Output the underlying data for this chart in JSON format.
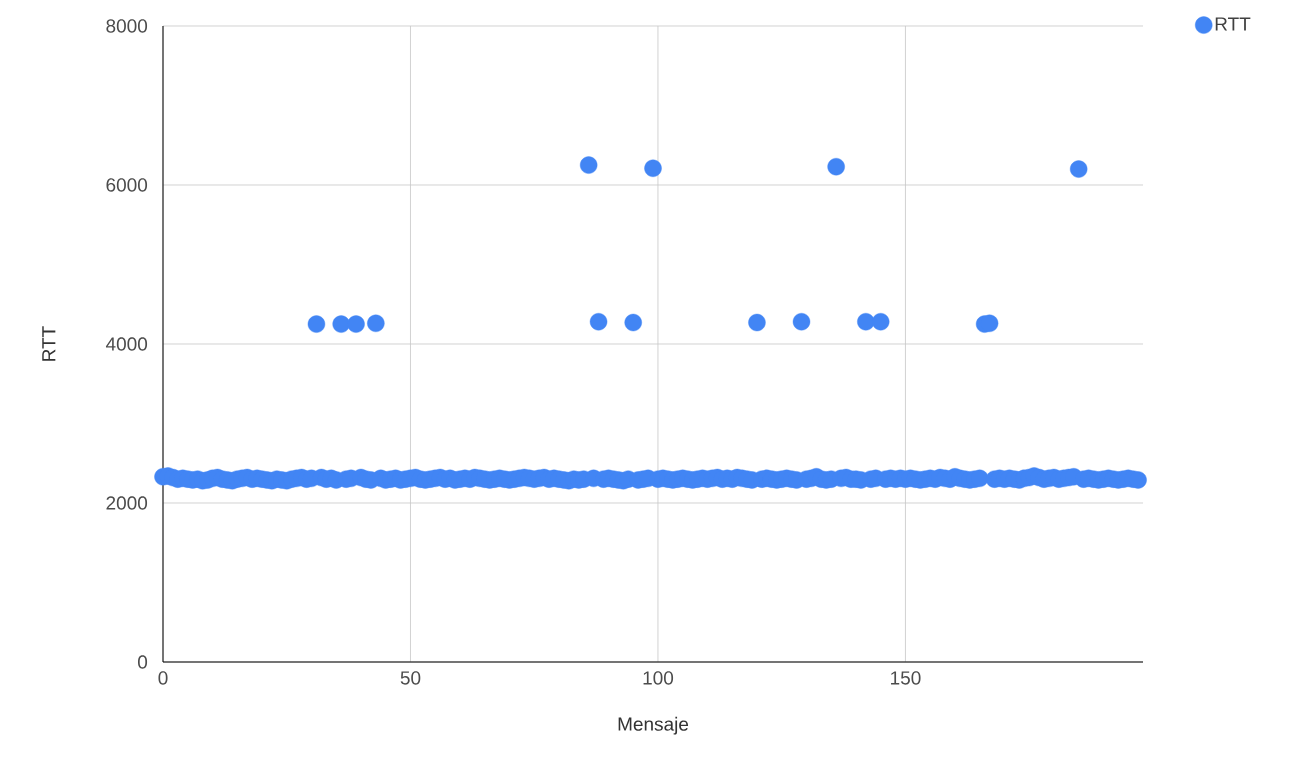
{
  "chart_data": {
    "type": "scatter",
    "xlabel": "Mensaje",
    "ylabel": "RTT",
    "x": [
      0,
      1,
      2,
      3,
      4,
      5,
      6,
      7,
      8,
      9,
      10,
      11,
      12,
      13,
      14,
      15,
      16,
      17,
      18,
      19,
      20,
      21,
      22,
      23,
      24,
      25,
      26,
      27,
      28,
      29,
      30,
      31,
      32,
      33,
      34,
      35,
      36,
      37,
      38,
      39,
      40,
      41,
      42,
      43,
      44,
      45,
      46,
      47,
      48,
      49,
      50,
      51,
      52,
      53,
      54,
      55,
      56,
      57,
      58,
      59,
      60,
      61,
      62,
      63,
      64,
      65,
      66,
      67,
      68,
      69,
      70,
      71,
      72,
      73,
      74,
      75,
      76,
      77,
      78,
      79,
      80,
      81,
      82,
      83,
      84,
      85,
      86,
      87,
      88,
      89,
      90,
      91,
      92,
      93,
      94,
      95,
      96,
      97,
      98,
      99,
      100,
      101,
      102,
      103,
      104,
      105,
      106,
      107,
      108,
      109,
      110,
      111,
      112,
      113,
      114,
      115,
      116,
      117,
      118,
      119,
      120,
      121,
      122,
      123,
      124,
      125,
      126,
      127,
      128,
      129,
      130,
      131,
      132,
      133,
      134,
      135,
      136,
      137,
      138,
      139,
      140,
      141,
      142,
      143,
      144,
      145,
      146,
      147,
      148,
      149,
      150,
      151,
      152,
      153,
      154,
      155,
      156,
      157,
      158,
      159,
      160,
      161,
      162,
      163,
      164,
      165,
      166,
      167,
      168,
      169,
      170,
      171,
      172,
      173,
      174,
      175,
      176,
      177,
      178,
      179,
      180,
      181,
      182,
      183,
      184,
      185,
      186,
      187,
      188,
      189,
      190,
      191,
      192,
      193,
      194,
      195,
      196,
      197
    ],
    "series": [
      {
        "name": "RTT",
        "color": "#4285f4",
        "values": [
          2330,
          2340,
          2320,
          2300,
          2310,
          2300,
          2290,
          2300,
          2280,
          2290,
          2310,
          2320,
          2300,
          2290,
          2280,
          2300,
          2310,
          2320,
          2300,
          2310,
          2300,
          2290,
          2280,
          2300,
          2290,
          2280,
          2300,
          2310,
          2320,
          2300,
          2310,
          4250,
          2320,
          2300,
          2310,
          2290,
          4250,
          2300,
          2310,
          4250,
          2320,
          2300,
          2290,
          4260,
          2310,
          2290,
          2300,
          2310,
          2290,
          2300,
          2310,
          2320,
          2300,
          2290,
          2300,
          2310,
          2320,
          2300,
          2310,
          2290,
          2300,
          2310,
          2300,
          2320,
          2310,
          2300,
          2290,
          2300,
          2310,
          2300,
          2290,
          2300,
          2310,
          2320,
          2310,
          2300,
          2310,
          2320,
          2300,
          2310,
          2300,
          2290,
          2280,
          2300,
          2290,
          2300,
          6250,
          2310,
          4280,
          2300,
          2310,
          2300,
          2290,
          2280,
          2300,
          4270,
          2290,
          2300,
          2310,
          6210,
          2300,
          2310,
          2300,
          2290,
          2300,
          2310,
          2300,
          2290,
          2300,
          2310,
          2300,
          2310,
          2320,
          2300,
          2310,
          2300,
          2320,
          2310,
          2300,
          2290,
          4270,
          2300,
          2310,
          2300,
          2290,
          2300,
          2310,
          2300,
          2290,
          4280,
          2300,
          2310,
          2330,
          2300,
          2290,
          2300,
          6230,
          2310,
          2320,
          2300,
          2300,
          2290,
          4280,
          2300,
          2310,
          4280,
          2300,
          2310,
          2300,
          2310,
          2300,
          2310,
          2300,
          2290,
          2300,
          2310,
          2300,
          2320,
          2310,
          2300,
          2330,
          2310,
          2300,
          2290,
          2300,
          2310,
          4250,
          4260,
          2300,
          2310,
          2300,
          2310,
          2300,
          2290,
          2310,
          2320,
          2340,
          2320,
          2300,
          2310,
          2320,
          2300,
          2310,
          2320,
          2330,
          6200,
          2300,
          2310,
          2300,
          2290,
          2300,
          2310,
          2300,
          2290,
          2300,
          2310,
          2300,
          2290
        ]
      }
    ],
    "xlim": [
      0,
      198
    ],
    "ylim": [
      0,
      8000
    ],
    "xticks": [
      0,
      50,
      100,
      150
    ],
    "yticks": [
      0,
      2000,
      4000,
      6000,
      8000
    ],
    "grid": true,
    "legend": "top right",
    "marker": "circle"
  }
}
